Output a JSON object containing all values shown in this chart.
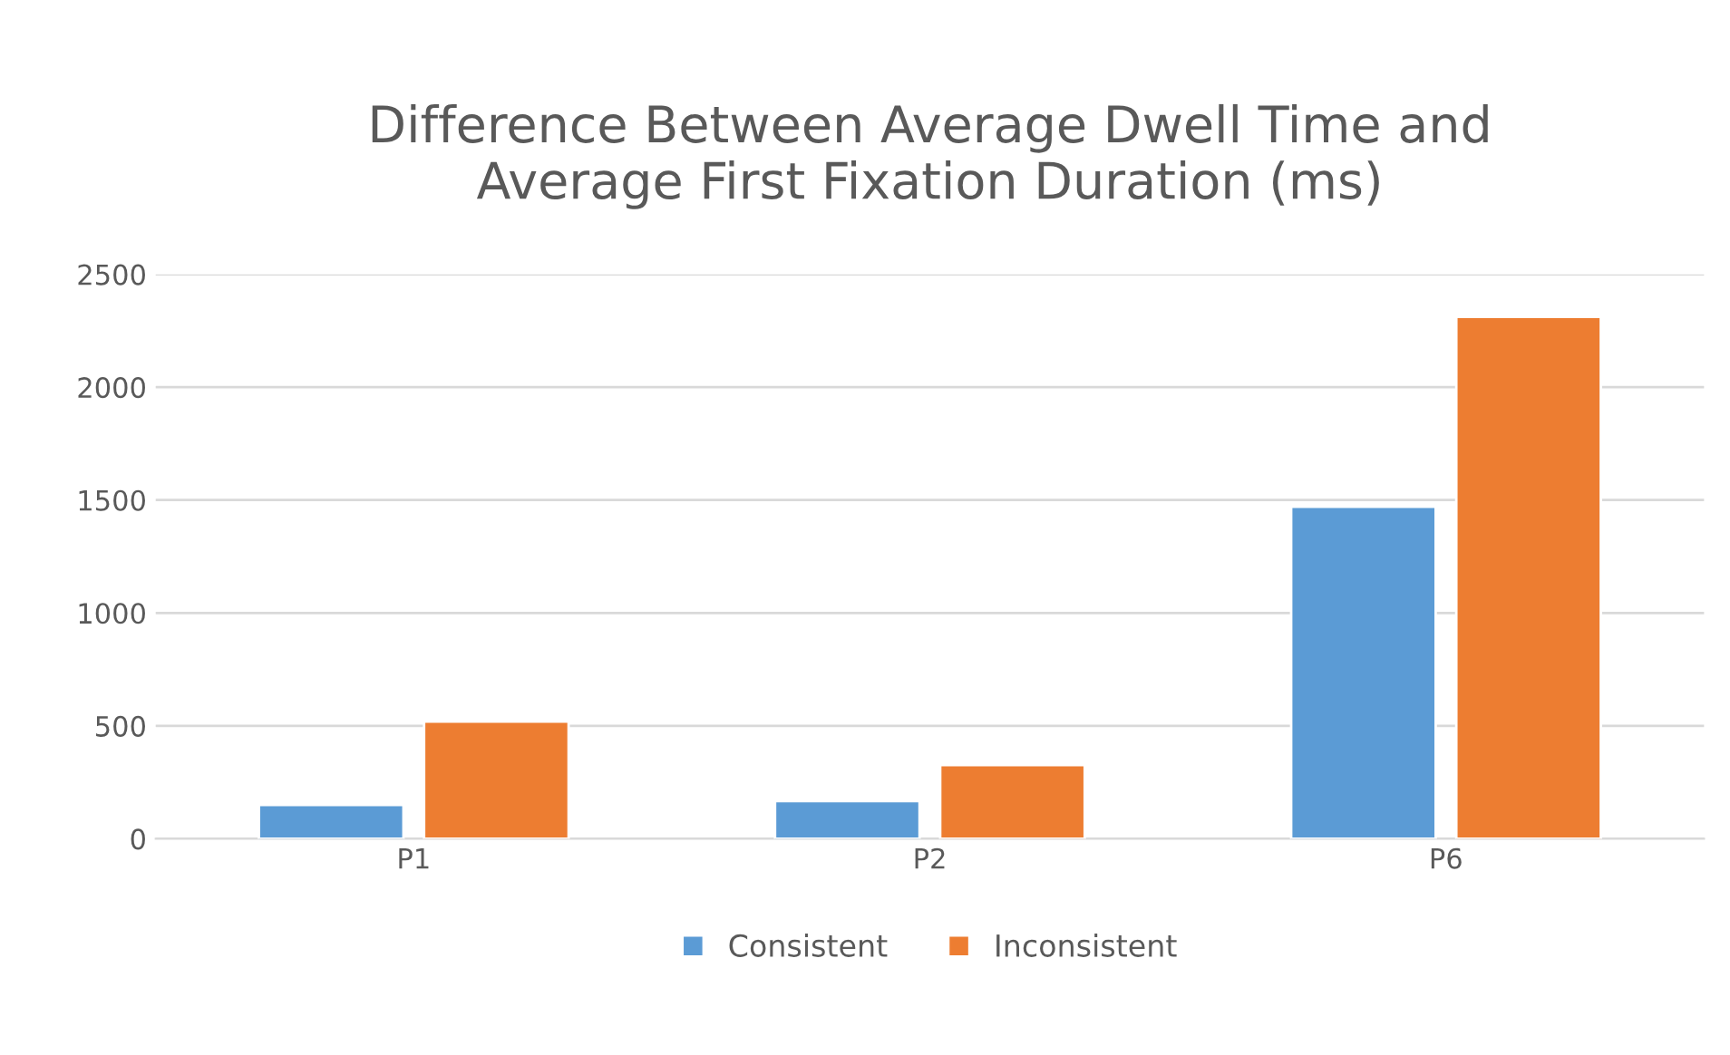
{
  "chart_data": {
    "type": "bar",
    "title": "Difference Between Average Dwell Time and\nAverage First Fixation Duration (ms)",
    "categories": [
      "P1",
      "P2",
      "P6"
    ],
    "series": [
      {
        "name": "Consistent",
        "color": "#5b9bd5",
        "values": [
          150,
          167,
          1470
        ]
      },
      {
        "name": "Inconsistent",
        "color": "#ed7d31",
        "values": [
          519,
          326,
          2311
        ]
      }
    ],
    "ylim": [
      0,
      2500
    ],
    "yticks": [
      0,
      500,
      1000,
      1500,
      2000,
      2500
    ],
    "grid": "y",
    "legend": "bottom"
  }
}
